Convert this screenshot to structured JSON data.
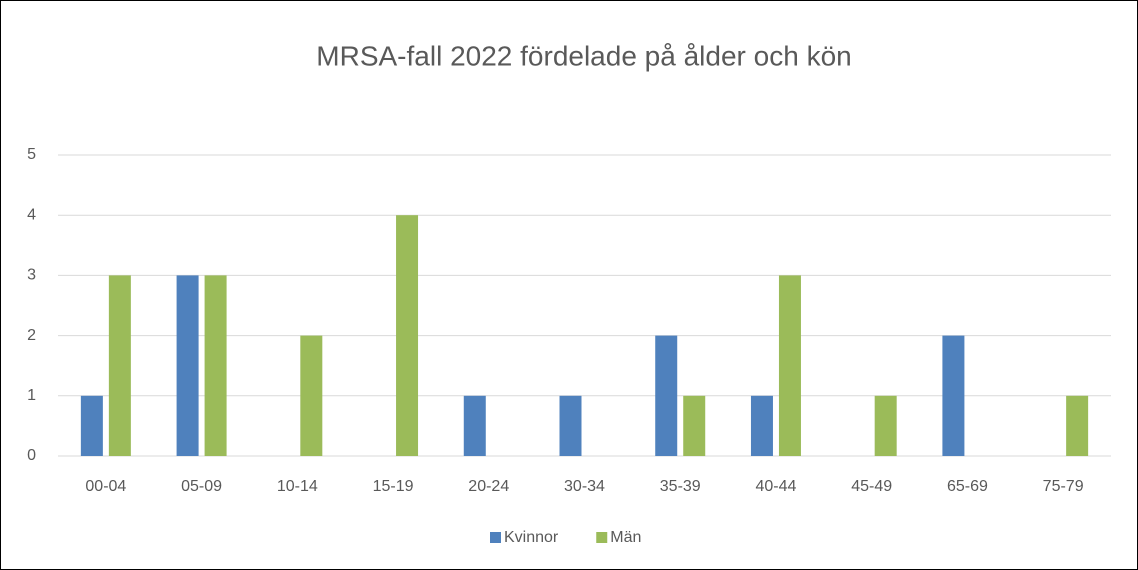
{
  "chart_data": {
    "type": "bar",
    "title": "MRSA-fall 2022 fördelade på ålder och kön",
    "categories": [
      "00-04",
      "05-09",
      "10-14",
      "15-19",
      "20-24",
      "30-34",
      "35-39",
      "40-44",
      "45-49",
      "65-69",
      "75-79"
    ],
    "series": [
      {
        "name": "Kvinnor",
        "color": "#4f81bd",
        "values": [
          1,
          3,
          0,
          0,
          1,
          1,
          2,
          1,
          0,
          2,
          0
        ]
      },
      {
        "name": "Män",
        "color": "#9bbb59",
        "values": [
          3,
          3,
          2,
          4,
          0,
          0,
          1,
          3,
          1,
          0,
          1
        ]
      }
    ],
    "ylim": [
      0,
      5
    ],
    "yticks": [
      0,
      1,
      2,
      3,
      4,
      5
    ],
    "grid": true,
    "legend": "bottom"
  }
}
